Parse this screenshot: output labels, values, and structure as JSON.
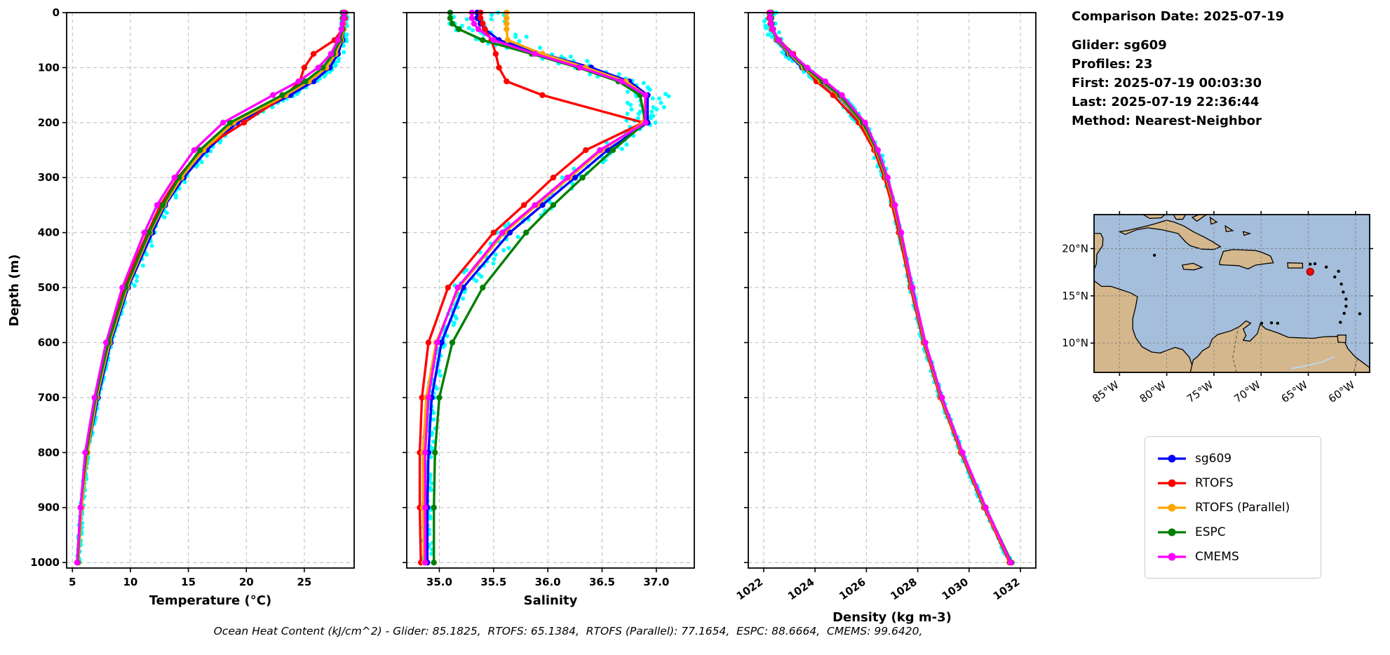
{
  "info": {
    "date": "Comparison Date: 2025-07-19",
    "lines": [
      "Glider: sg609",
      "Profiles: 23",
      "First: 2025-07-19 00:03:30",
      "Last: 2025-07-19 22:36:44",
      "Method: Nearest-Neighbor"
    ]
  },
  "legend": {
    "items": [
      {
        "label": "sg609",
        "color": "#0000ff"
      },
      {
        "label": "RTOFS",
        "color": "#ff0000"
      },
      {
        "label": "RTOFS (Parallel)",
        "color": "#ffa500"
      },
      {
        "label": "ESPC",
        "color": "#008000"
      },
      {
        "label": "CMEMS",
        "color": "#ff00ff"
      }
    ]
  },
  "caption": "Ocean Heat Content (kJ/cm^2) - Glider: 85.1825,  RTOFS: 65.1384,  RTOFS (Parallel): 77.1654,  ESPC: 88.6664,  CMEMS: 99.6420,",
  "map": {
    "lat_ticks": [
      "20°N",
      "15°N",
      "10°N"
    ],
    "lat_vals": [
      20,
      15,
      10
    ],
    "lon_ticks": [
      "85°W",
      "80°W",
      "75°W",
      "70°W",
      "65°W",
      "60°W"
    ],
    "lon_vals": [
      -85,
      -80,
      -75,
      -70,
      -65,
      -60
    ],
    "land_color": "#d4b78c",
    "ocean_color": "#a5bedb",
    "marker_color": "#ff0000",
    "marker_lon": -64.8,
    "marker_lat": 17.55
  },
  "chart_data": {
    "type": "line",
    "description": "Vertical ocean profiles: glider sg609 vs model fields, depth 0-1000 m",
    "ylabel": "Depth (m)",
    "ylim": [
      0,
      1010
    ],
    "yticks": [
      0,
      100,
      200,
      300,
      400,
      500,
      600,
      700,
      800,
      900,
      1000
    ],
    "ytick_labels": [
      "0",
      "100",
      "200",
      "300",
      "400",
      "500",
      "600",
      "700",
      "800",
      "900",
      "1000"
    ],
    "glider_raw_color": "#00ffff",
    "depths": [
      0,
      10,
      20,
      30,
      50,
      75,
      100,
      125,
      150,
      200,
      250,
      300,
      350,
      400,
      500,
      600,
      700,
      800,
      900,
      1000
    ],
    "series_meta": [
      {
        "name": "sg609",
        "color": "#0000ff"
      },
      {
        "name": "RTOFS",
        "color": "#ff0000"
      },
      {
        "name": "RTOFS (Parallel)",
        "color": "#ffa500"
      },
      {
        "name": "ESPC",
        "color": "#008000"
      },
      {
        "name": "CMEMS",
        "color": "#ff00ff"
      }
    ],
    "panels": [
      {
        "name": "temperature",
        "xlabel": "Temperature (°C)",
        "xlim": [
          4.5,
          29.3
        ],
        "xticks": [
          5,
          10,
          15,
          20,
          25
        ],
        "xtick_labels": [
          "5",
          "10",
          "15",
          "20",
          "25"
        ],
        "rotate_xtick_labels": false,
        "values": [
          [
            28.4,
            28.4,
            28.4,
            28.4,
            28.3,
            27.9,
            27.2,
            25.8,
            23.8,
            19.2,
            16.6,
            14.6,
            13.0,
            11.9,
            9.8,
            8.3,
            7.2,
            6.3,
            5.8,
            5.5
          ],
          [
            28.5,
            28.5,
            28.4,
            28.3,
            27.6,
            25.8,
            25.0,
            24.6,
            23.4,
            19.8,
            16.1,
            14.1,
            12.6,
            11.5,
            9.4,
            8.0,
            7.0,
            6.2,
            5.7,
            5.4
          ],
          [
            28.4,
            28.4,
            28.4,
            28.4,
            28.2,
            27.7,
            26.9,
            25.4,
            23.4,
            18.9,
            16.3,
            14.4,
            12.9,
            11.7,
            9.7,
            8.2,
            7.1,
            6.3,
            5.8,
            5.5
          ],
          [
            28.3,
            28.3,
            28.3,
            28.3,
            28.1,
            27.5,
            26.6,
            25.1,
            23.1,
            18.6,
            16.0,
            14.2,
            12.8,
            11.6,
            9.6,
            8.1,
            7.0,
            6.2,
            5.7,
            5.45
          ],
          [
            28.4,
            28.4,
            28.3,
            28.2,
            27.9,
            27.3,
            26.2,
            24.5,
            22.3,
            18.0,
            15.5,
            13.8,
            12.3,
            11.2,
            9.3,
            7.9,
            6.9,
            6.1,
            5.7,
            5.4
          ]
        ]
      },
      {
        "name": "salinity",
        "xlabel": "Salinity",
        "xlim": [
          34.7,
          37.35
        ],
        "xticks": [
          35.0,
          35.5,
          36.0,
          36.5,
          37.0
        ],
        "xtick_labels": [
          "35.0",
          "35.5",
          "36.0",
          "36.5",
          "37.0"
        ],
        "rotate_xtick_labels": false,
        "values": [
          [
            35.35,
            35.35,
            35.38,
            35.42,
            35.55,
            35.95,
            36.4,
            36.75,
            36.92,
            36.92,
            36.55,
            36.25,
            35.95,
            35.65,
            35.22,
            35.02,
            34.93,
            34.9,
            34.89,
            34.89
          ],
          [
            35.38,
            35.38,
            35.4,
            35.42,
            35.48,
            35.52,
            35.55,
            35.62,
            35.95,
            36.88,
            36.35,
            36.05,
            35.78,
            35.5,
            35.08,
            34.9,
            34.84,
            34.82,
            34.82,
            34.83
          ],
          [
            35.62,
            35.62,
            35.62,
            35.62,
            35.63,
            35.95,
            36.35,
            36.72,
            36.9,
            36.88,
            36.5,
            36.2,
            35.9,
            35.6,
            35.18,
            34.97,
            34.88,
            34.85,
            34.85,
            34.86
          ],
          [
            35.1,
            35.1,
            35.12,
            35.18,
            35.4,
            35.85,
            36.28,
            36.65,
            36.85,
            36.9,
            36.6,
            36.32,
            36.05,
            35.8,
            35.4,
            35.12,
            35.0,
            34.96,
            34.95,
            34.95
          ],
          [
            35.3,
            35.3,
            35.32,
            35.36,
            35.5,
            35.88,
            36.3,
            36.68,
            36.9,
            36.9,
            36.48,
            36.18,
            35.88,
            35.58,
            35.17,
            34.98,
            34.9,
            34.87,
            34.87,
            34.87
          ]
        ]
      },
      {
        "name": "density",
        "xlabel": "Density (kg m-3)",
        "xlim": [
          1021.4,
          1032.6
        ],
        "xticks": [
          1022,
          1024,
          1026,
          1028,
          1030,
          1032
        ],
        "xtick_labels": [
          "1022",
          "1024",
          "1026",
          "1028",
          "1030",
          "1032"
        ],
        "rotate_xtick_labels": true,
        "values": [
          [
            1022.25,
            1022.25,
            1022.28,
            1022.33,
            1022.5,
            1022.95,
            1023.5,
            1024.2,
            1024.9,
            1025.8,
            1026.35,
            1026.75,
            1027.05,
            1027.3,
            1027.75,
            1028.25,
            1028.9,
            1029.7,
            1030.6,
            1031.6
          ],
          [
            1022.22,
            1022.22,
            1022.26,
            1022.32,
            1022.6,
            1023.15,
            1023.6,
            1024.05,
            1024.7,
            1025.7,
            1026.3,
            1026.7,
            1027.0,
            1027.26,
            1027.72,
            1028.23,
            1028.88,
            1029.68,
            1030.58,
            1031.58
          ],
          [
            1022.28,
            1022.28,
            1022.3,
            1022.35,
            1022.52,
            1023.0,
            1023.55,
            1024.22,
            1024.92,
            1025.82,
            1026.37,
            1026.77,
            1027.07,
            1027.32,
            1027.77,
            1028.27,
            1028.92,
            1029.72,
            1030.62,
            1031.62
          ],
          [
            1022.3,
            1022.3,
            1022.32,
            1022.37,
            1022.55,
            1023.05,
            1023.62,
            1024.28,
            1024.96,
            1025.86,
            1026.4,
            1026.8,
            1027.1,
            1027.34,
            1027.79,
            1028.29,
            1028.94,
            1029.74,
            1030.64,
            1031.66
          ],
          [
            1022.26,
            1022.26,
            1022.3,
            1022.36,
            1022.58,
            1023.1,
            1023.7,
            1024.4,
            1025.05,
            1025.95,
            1026.45,
            1026.83,
            1027.12,
            1027.36,
            1027.8,
            1028.3,
            1028.95,
            1029.75,
            1030.65,
            1031.63
          ]
        ]
      }
    ]
  }
}
